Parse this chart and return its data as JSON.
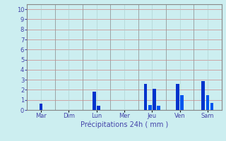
{
  "days": [
    "Mar",
    "Dim",
    "Lun",
    "Mer",
    "Jeu",
    "Ven",
    "Sam"
  ],
  "bars": [
    {
      "day": "Mar",
      "values": [
        0.6
      ],
      "colors": [
        "#0033cc"
      ]
    },
    {
      "day": "Dim",
      "values": [],
      "colors": []
    },
    {
      "day": "Lun",
      "values": [
        1.8,
        0.4
      ],
      "colors": [
        "#0033cc",
        "#0033cc"
      ]
    },
    {
      "day": "Mer",
      "values": [],
      "colors": []
    },
    {
      "day": "Jeu",
      "values": [
        2.6,
        0.5,
        2.1,
        0.4
      ],
      "colors": [
        "#0033cc",
        "#0055ee",
        "#0033cc",
        "#0055ee"
      ]
    },
    {
      "day": "Ven",
      "values": [
        2.6,
        1.5
      ],
      "colors": [
        "#0033cc",
        "#0055ee"
      ]
    },
    {
      "day": "Sam",
      "values": [
        2.9,
        1.5,
        0.7
      ],
      "colors": [
        "#0033cc",
        "#0055ee",
        "#0055ee"
      ]
    }
  ],
  "background_color": "#cceef0",
  "grid_color": "#aacccc",
  "grid_color_red": "#cc8888",
  "xlabel": "Précipitations 24h ( mm )",
  "ylabel_ticks": [
    0,
    1,
    2,
    3,
    4,
    5,
    6,
    7,
    8,
    9,
    10
  ],
  "ylim": [
    0,
    10.5
  ],
  "tick_color": "#4444aa",
  "xlabel_color": "#4444aa",
  "border_color": "#888888",
  "bar_width": 0.12,
  "n_days": 7
}
